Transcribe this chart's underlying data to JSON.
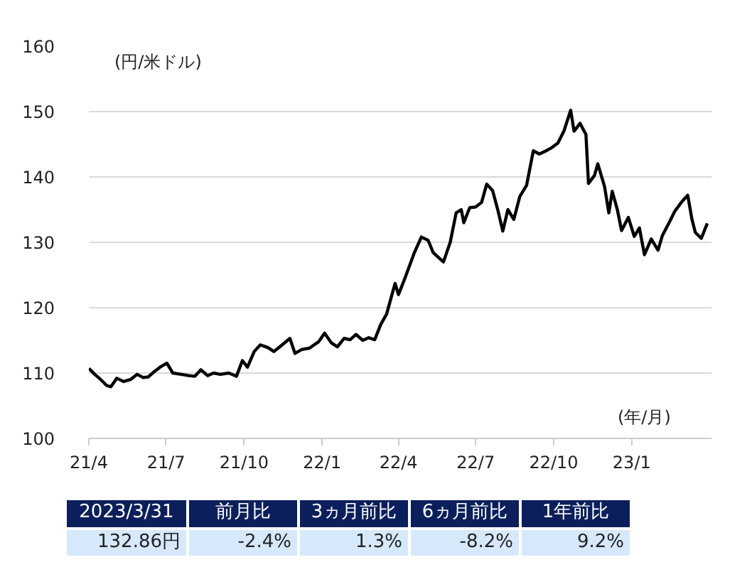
{
  "chart_data": {
    "type": "line",
    "ylabel": "(円/米ドル)",
    "xlabel": "(年/月)",
    "x": [
      "2021-04-01",
      "2021-04-08",
      "2021-04-15",
      "2021-04-22",
      "2021-04-27",
      "2021-05-04",
      "2021-05-12",
      "2021-05-20",
      "2021-05-28",
      "2021-06-04",
      "2021-06-10",
      "2021-06-17",
      "2021-06-24",
      "2021-07-02",
      "2021-07-09",
      "2021-07-19",
      "2021-07-28",
      "2021-08-04",
      "2021-08-11",
      "2021-08-19",
      "2021-08-26",
      "2021-09-03",
      "2021-09-13",
      "2021-09-22",
      "2021-09-29",
      "2021-10-05",
      "2021-10-13",
      "2021-10-20",
      "2021-10-29",
      "2021-11-05",
      "2021-11-12",
      "2021-11-24",
      "2021-11-30",
      "2021-12-08",
      "2021-12-17",
      "2021-12-28",
      "2022-01-04",
      "2022-01-12",
      "2022-01-19",
      "2022-01-27",
      "2022-02-03",
      "2022-02-10",
      "2022-02-18",
      "2022-02-25",
      "2022-03-04",
      "2022-03-11",
      "2022-03-18",
      "2022-03-28",
      "2022-04-01",
      "2022-04-08",
      "2022-04-20",
      "2022-04-28",
      "2022-05-06",
      "2022-05-12",
      "2022-05-24",
      "2022-06-01",
      "2022-06-08",
      "2022-06-14",
      "2022-06-17",
      "2022-06-24",
      "2022-07-01",
      "2022-07-08",
      "2022-07-14",
      "2022-07-21",
      "2022-07-27",
      "2022-08-02",
      "2022-08-08",
      "2022-08-15",
      "2022-08-22",
      "2022-08-30",
      "2022-09-07",
      "2022-09-14",
      "2022-09-22",
      "2022-09-29",
      "2022-10-06",
      "2022-10-13",
      "2022-10-21",
      "2022-10-25",
      "2022-11-01",
      "2022-11-08",
      "2022-11-11",
      "2022-11-18",
      "2022-11-22",
      "2022-11-30",
      "2022-12-05",
      "2022-12-09",
      "2022-12-15",
      "2022-12-20",
      "2022-12-28",
      "2023-01-04",
      "2023-01-10",
      "2023-01-16",
      "2023-01-24",
      "2023-02-01",
      "2023-02-06",
      "2023-02-14",
      "2023-02-21",
      "2023-03-01",
      "2023-03-08",
      "2023-03-13",
      "2023-03-17",
      "2023-03-24",
      "2023-03-31"
    ],
    "series": [
      {
        "color": "#000000",
        "values": [
          110.7,
          109.8,
          109.0,
          108.1,
          107.9,
          109.2,
          108.7,
          109.0,
          109.8,
          109.3,
          109.4,
          110.2,
          110.9,
          111.5,
          110.0,
          109.8,
          109.6,
          109.5,
          110.5,
          109.6,
          110.0,
          109.8,
          110.0,
          109.5,
          111.9,
          110.9,
          113.3,
          114.3,
          113.9,
          113.3,
          114.0,
          115.3,
          113.0,
          113.6,
          113.8,
          114.8,
          116.1,
          114.6,
          114.0,
          115.3,
          115.1,
          115.9,
          115.0,
          115.4,
          115.1,
          117.4,
          119.0,
          123.7,
          122.0,
          124.3,
          128.5,
          130.8,
          130.3,
          128.4,
          127.0,
          130.0,
          134.5,
          135.0,
          133.0,
          135.3,
          135.4,
          136.1,
          138.9,
          137.9,
          135.0,
          131.7,
          135.0,
          133.5,
          137.0,
          138.7,
          144.0,
          143.5,
          144.0,
          144.5,
          145.2,
          147.0,
          150.2,
          147.0,
          148.2,
          146.5,
          139.0,
          140.2,
          142.0,
          138.5,
          134.5,
          137.8,
          135.0,
          131.8,
          133.8,
          130.9,
          132.2,
          128.1,
          130.5,
          128.8,
          131.0,
          133.0,
          134.8,
          136.2,
          137.2,
          133.5,
          131.5,
          130.6,
          132.9
        ]
      }
    ],
    "xlim": [
      "2021-04-01",
      "2023-04-05"
    ],
    "xticks": [
      {
        "value": "2021-04-01",
        "label": "21/4"
      },
      {
        "value": "2021-07-01",
        "label": "21/7"
      },
      {
        "value": "2021-10-01",
        "label": "21/10"
      },
      {
        "value": "2022-01-01",
        "label": "22/1"
      },
      {
        "value": "2022-04-01",
        "label": "22/4"
      },
      {
        "value": "2022-07-01",
        "label": "22/7"
      },
      {
        "value": "2022-10-01",
        "label": "22/10"
      },
      {
        "value": "2023-01-01",
        "label": "23/1"
      }
    ],
    "ylim": [
      100,
      160
    ],
    "yticks": [
      100,
      110,
      120,
      130,
      140,
      150,
      160
    ],
    "grid": "y",
    "line_style": "solid",
    "marker": "none",
    "annotations": [
      "2023/3/31",
      "前月比",
      "3ヵ月前比",
      "6ヵ月前比",
      "1年前比",
      "132.86円",
      "-2.4%",
      "1.3%",
      "-8.2%",
      "9.2%"
    ]
  }
}
